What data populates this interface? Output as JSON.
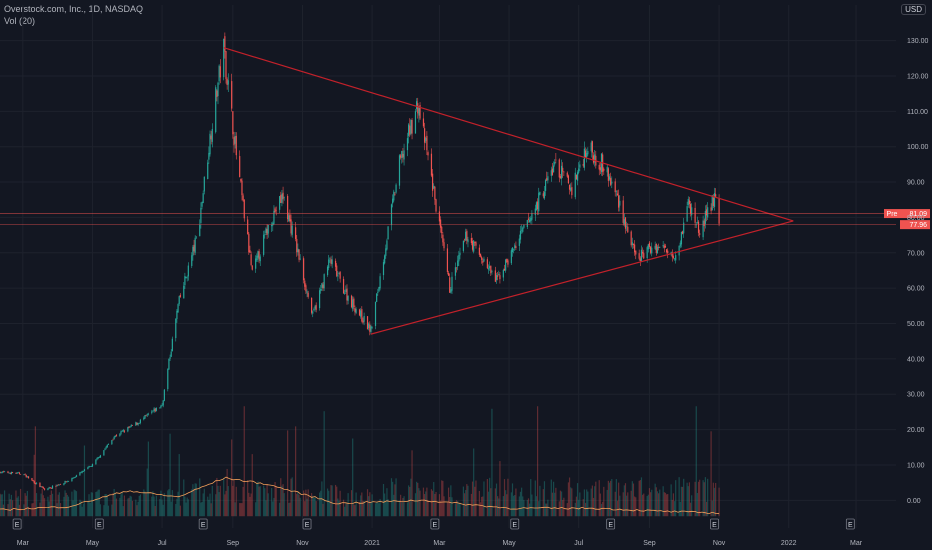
{
  "header": {
    "symbol_line": "Overstock.com, Inc., 1D, NASDAQ",
    "volume_label": "Vol (20)",
    "currency": "USD"
  },
  "colors": {
    "up": "#26a69a",
    "down": "#ef5350",
    "trendline": "#c2212a",
    "volume_ma": "#f5a05a",
    "background": "#131722",
    "grid": "#1e222d"
  },
  "chart_data": {
    "type": "candlestick",
    "title": "Overstock.com, Inc., 1D, NASDAQ",
    "ylim": [
      -5,
      133
    ],
    "y_ticks": [
      "0.00",
      "10.00",
      "20.00",
      "30.00",
      "40.00",
      "50.00",
      "60.00",
      "70.00",
      "80.00",
      "90.00",
      "100.00",
      "110.00",
      "120.00",
      "130.00"
    ],
    "x_ticks": [
      "Mar",
      "May",
      "Jul",
      "Sep",
      "Nov",
      "2021",
      "Mar",
      "May",
      "Jul",
      "Sep",
      "Nov",
      "2022",
      "Mar"
    ],
    "x_range": [
      "2020-02-10",
      "2022-04-05"
    ],
    "price_path": [
      {
        "date": "2020-02-10",
        "price": 8
      },
      {
        "date": "2020-03-01",
        "price": 7.5
      },
      {
        "date": "2020-03-20",
        "price": 3
      },
      {
        "date": "2020-04-10",
        "price": 5.5
      },
      {
        "date": "2020-05-01",
        "price": 10
      },
      {
        "date": "2020-05-20",
        "price": 18
      },
      {
        "date": "2020-06-10",
        "price": 22
      },
      {
        "date": "2020-07-01",
        "price": 27
      },
      {
        "date": "2020-07-15",
        "price": 55
      },
      {
        "date": "2020-08-01",
        "price": 75
      },
      {
        "date": "2020-08-15",
        "price": 110
      },
      {
        "date": "2020-08-24",
        "price": 128
      },
      {
        "date": "2020-09-05",
        "price": 95
      },
      {
        "date": "2020-09-18",
        "price": 64
      },
      {
        "date": "2020-10-05",
        "price": 80
      },
      {
        "date": "2020-10-15",
        "price": 86
      },
      {
        "date": "2020-10-28",
        "price": 70
      },
      {
        "date": "2020-11-10",
        "price": 52
      },
      {
        "date": "2020-11-25",
        "price": 68
      },
      {
        "date": "2020-12-10",
        "price": 58
      },
      {
        "date": "2020-12-31",
        "price": 48
      },
      {
        "date": "2021-01-25",
        "price": 95
      },
      {
        "date": "2021-02-10",
        "price": 112
      },
      {
        "date": "2021-02-20",
        "price": 95
      },
      {
        "date": "2021-03-10",
        "price": 60
      },
      {
        "date": "2021-03-25",
        "price": 75
      },
      {
        "date": "2021-04-20",
        "price": 62
      },
      {
        "date": "2021-05-20",
        "price": 80
      },
      {
        "date": "2021-06-10",
        "price": 95
      },
      {
        "date": "2021-06-25",
        "price": 88
      },
      {
        "date": "2021-07-08",
        "price": 100
      },
      {
        "date": "2021-07-22",
        "price": 95
      },
      {
        "date": "2021-08-05",
        "price": 85
      },
      {
        "date": "2021-08-20",
        "price": 68
      },
      {
        "date": "2021-09-05",
        "price": 72
      },
      {
        "date": "2021-09-25",
        "price": 70
      },
      {
        "date": "2021-10-05",
        "price": 84
      },
      {
        "date": "2021-10-15",
        "price": 76
      },
      {
        "date": "2021-10-28",
        "price": 86
      },
      {
        "date": "2021-11-01",
        "price": 78
      }
    ],
    "volume_ma_path": [
      {
        "date": "2020-02-10",
        "value": 2
      },
      {
        "date": "2020-04-10",
        "value": 3
      },
      {
        "date": "2020-06-01",
        "value": 8
      },
      {
        "date": "2020-07-15",
        "value": 6
      },
      {
        "date": "2020-08-25",
        "value": 12
      },
      {
        "date": "2020-10-01",
        "value": 10
      },
      {
        "date": "2020-12-01",
        "value": 4
      },
      {
        "date": "2021-02-15",
        "value": 5
      },
      {
        "date": "2021-05-01",
        "value": 2.5
      },
      {
        "date": "2021-07-15",
        "value": 2.5
      },
      {
        "date": "2021-09-15",
        "value": 1.5
      },
      {
        "date": "2021-11-01",
        "value": 1
      }
    ],
    "trendlines": [
      {
        "name": "upper",
        "points": [
          {
            "date": "2020-08-24",
            "price": 128
          },
          {
            "date": "2022-01-05",
            "price": 79
          }
        ]
      },
      {
        "name": "lower",
        "points": [
          {
            "date": "2020-12-31",
            "price": 47
          },
          {
            "date": "2022-01-05",
            "price": 79
          }
        ]
      }
    ],
    "price_lines": [
      {
        "label": "Pre",
        "value_label": "81.09",
        "value": 81.09
      },
      {
        "label": "",
        "value_label": "77.96",
        "value": 77.96
      }
    ],
    "earnings_markers": [
      "2020-02-25",
      "2020-05-07",
      "2020-08-06",
      "2020-11-05",
      "2021-02-25",
      "2021-05-06",
      "2021-07-29",
      "2021-10-28",
      "2022-02-24"
    ],
    "earnings_label": "E"
  }
}
